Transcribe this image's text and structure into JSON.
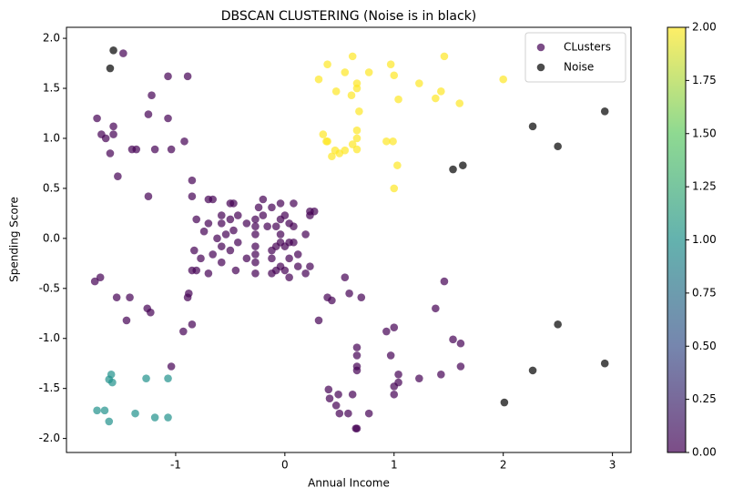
{
  "chart_data": {
    "type": "scatter",
    "title": "DBSCAN CLUSTERING (Noise is in black)",
    "x_label": "Annual Income",
    "y_label": "Spending Score",
    "xlim": [
      -2.0,
      3.17
    ],
    "ylim": [
      -2.14,
      2.11
    ],
    "xticks": [
      -1,
      0,
      1,
      2,
      3
    ],
    "yticks": [
      {
        "value": -2,
        "label": "-2.0"
      },
      -1.5,
      {
        "value": -1,
        "label": "-1.0"
      },
      -0.5,
      {
        "value": 0,
        "label": "0.0"
      },
      0.5,
      {
        "value": 1,
        "label": "1.0"
      },
      1.5,
      {
        "value": 2,
        "label": "2.0"
      }
    ],
    "alpha": 0.7,
    "legend": "upper right",
    "colormap": [
      "#440154",
      "#3b528b",
      "#21918c",
      "#5ec962",
      "#fde725"
    ],
    "clim": [
      0,
      2
    ],
    "cticks": [
      {
        "value": 0,
        "label": "0.00"
      },
      {
        "value": 0.25,
        "label": "0.25"
      },
      {
        "value": 0.5,
        "label": "0.50"
      },
      {
        "value": 0.75,
        "label": "0.75"
      },
      {
        "value": 1,
        "label": "1.00"
      },
      {
        "value": 1.25,
        "label": "1.25"
      },
      {
        "value": 1.5,
        "label": "1.50"
      },
      {
        "value": 1.75,
        "label": "1.75"
      },
      {
        "value": 2,
        "label": "2.00"
      }
    ],
    "series": [
      {
        "name": "CLusters",
        "x": [
          -1.72,
          -1.68,
          -1.64,
          -1.57,
          -1.57,
          -1.6,
          -1.53,
          -1.48,
          -1.4,
          -1.36,
          -1.25,
          -1.25,
          -1.22,
          -1.19,
          -1.07,
          -1.07,
          -1.04,
          -0.92,
          -0.89,
          -0.85,
          -0.85,
          -1.74,
          -1.69,
          -1.54,
          -1.45,
          -1.42,
          -1.26,
          -1.23,
          -0.93,
          -0.89,
          -0.88,
          -0.85,
          -1.04,
          0.31,
          0.39,
          0.4,
          0.41,
          0.43,
          0.47,
          0.49,
          0.5,
          0.55,
          0.58,
          0.59,
          0.62,
          0.65,
          0.66,
          0.66,
          0.66,
          0.66,
          0.66,
          0.7,
          0.77,
          0.93,
          0.97,
          1.0,
          1.0,
          1.0,
          1.04,
          1.04,
          1.23,
          1.38,
          1.43,
          1.46,
          1.54,
          1.61,
          1.61,
          -0.85,
          -0.81,
          -0.83,
          -0.81,
          -0.77,
          -0.74,
          -0.7,
          -0.7,
          -0.7,
          -0.66,
          -0.66,
          -0.62,
          -0.58,
          -0.58,
          -0.58,
          -0.58,
          -0.54,
          -0.5,
          -0.5,
          -0.5,
          -0.47,
          -0.47,
          -0.45,
          -0.43,
          -0.43,
          -0.35,
          -0.35,
          -0.27,
          -0.27,
          -0.27,
          -0.27,
          -0.27,
          -0.27,
          -0.27,
          -0.24,
          -0.2,
          -0.2,
          -0.16,
          -0.12,
          -0.12,
          -0.12,
          -0.12,
          -0.08,
          -0.08,
          -0.08,
          -0.04,
          -0.04,
          -0.04,
          -0.04,
          -0.04,
          0.0,
          0.0,
          0.0,
          0.04,
          0.04,
          0.04,
          0.04,
          0.08,
          0.08,
          0.08,
          0.12,
          0.12,
          0.19,
          0.19,
          0.23,
          0.23,
          0.23,
          0.27,
          -1.61,
          -1.59,
          -1.58,
          -1.27,
          -1.07,
          -1.72,
          -1.65,
          -1.61,
          -1.37,
          -1.19,
          -1.07,
          0.31,
          0.39,
          0.47,
          0.55,
          0.61,
          0.62,
          0.66,
          0.66,
          0.68,
          0.77,
          0.97,
          1.0,
          1.04,
          1.23,
          1.38,
          1.43,
          1.46,
          1.6,
          2.0,
          0.35,
          0.38,
          0.39,
          0.43,
          0.46,
          0.5,
          0.55,
          0.62,
          0.66,
          0.66,
          0.66,
          0.93,
          0.99,
          1.0,
          1.03
        ],
        "values": [
          1.2,
          1.04,
          1.0,
          1.12,
          1.04,
          0.85,
          0.62,
          1.85,
          0.89,
          0.89,
          1.24,
          0.42,
          1.43,
          0.89,
          1.62,
          1.2,
          0.89,
          0.97,
          1.62,
          0.58,
          0.42,
          -0.43,
          -0.39,
          -0.59,
          -0.82,
          -0.59,
          -0.7,
          -0.74,
          -0.93,
          -0.59,
          -0.55,
          -0.86,
          -1.28,
          -0.82,
          -0.59,
          -1.51,
          -1.6,
          -0.62,
          -1.67,
          -1.56,
          -1.75,
          -0.39,
          -1.75,
          -0.55,
          -1.56,
          -1.9,
          -1.9,
          -1.09,
          -1.17,
          -1.28,
          -1.32,
          -0.59,
          -1.75,
          -0.93,
          -1.17,
          -0.89,
          -1.48,
          -1.56,
          -1.36,
          -1.44,
          -1.4,
          -0.7,
          -1.36,
          -0.43,
          -1.01,
          -1.05,
          -1.28,
          -0.32,
          -0.32,
          -0.12,
          0.19,
          -0.2,
          0.07,
          0.39,
          0.15,
          -0.35,
          0.39,
          -0.16,
          0.0,
          0.23,
          0.15,
          -0.08,
          -0.24,
          0.04,
          0.35,
          0.19,
          -0.12,
          0.35,
          0.08,
          -0.32,
          0.23,
          -0.04,
          0.15,
          -0.2,
          0.19,
          0.12,
          0.04,
          -0.08,
          -0.16,
          -0.24,
          -0.35,
          0.31,
          0.39,
          0.23,
          0.12,
          0.31,
          -0.12,
          -0.2,
          -0.35,
          0.12,
          -0.08,
          -0.32,
          0.35,
          0.19,
          0.04,
          -0.04,
          -0.28,
          0.23,
          -0.08,
          -0.32,
          0.15,
          -0.04,
          -0.2,
          -0.39,
          0.35,
          0.12,
          -0.04,
          -0.16,
          -0.28,
          0.04,
          -0.35,
          -0.28,
          0.23,
          0.27,
          0.27,
          -1.41,
          -1.36,
          -1.44,
          -1.4,
          -1.4,
          -1.72,
          -1.72,
          -1.83,
          -1.75,
          -1.79,
          -1.79,
          1.59,
          1.74,
          1.47,
          1.66,
          1.43,
          1.82,
          1.5,
          1.55,
          1.27,
          1.66,
          1.74,
          1.63,
          1.39,
          1.55,
          1.4,
          1.47,
          1.82,
          1.35,
          1.59,
          1.04,
          0.97,
          0.97,
          0.82,
          0.88,
          0.85,
          0.88,
          0.94,
          0.89,
          1.0,
          1.08,
          0.97,
          0.97,
          0.5,
          0.73
        ],
        "c": [
          0,
          0,
          0,
          0,
          0,
          0,
          0,
          0,
          0,
          0,
          0,
          0,
          0,
          0,
          0,
          0,
          0,
          0,
          0,
          0,
          0,
          0,
          0,
          0,
          0,
          0,
          0,
          0,
          0,
          0,
          0,
          0,
          0,
          0,
          0,
          0,
          0,
          0,
          0,
          0,
          0,
          0,
          0,
          0,
          0,
          0,
          0,
          0,
          0,
          0,
          0,
          0,
          0,
          0,
          0,
          0,
          0,
          0,
          0,
          0,
          0,
          0,
          0,
          0,
          0,
          0,
          0,
          0,
          0,
          0,
          0,
          0,
          0,
          0,
          0,
          0,
          0,
          0,
          0,
          0,
          0,
          0,
          0,
          0,
          0,
          0,
          0,
          0,
          0,
          0,
          0,
          0,
          0,
          0,
          0,
          0,
          0,
          0,
          0,
          0,
          0,
          0,
          0,
          0,
          0,
          0,
          0,
          0,
          0,
          0,
          0,
          0,
          0,
          0,
          0,
          0,
          0,
          0,
          0,
          0,
          0,
          0,
          0,
          0,
          0,
          0,
          0,
          0,
          0,
          0,
          0,
          0,
          0,
          0,
          0,
          1,
          1,
          1,
          1,
          1,
          1,
          1,
          1,
          1,
          1,
          1,
          2,
          2,
          2,
          2,
          2,
          2,
          2,
          2,
          2,
          2,
          2,
          2,
          2,
          2,
          2,
          2,
          2,
          2,
          2,
          2,
          2,
          2,
          2,
          2,
          2,
          2,
          2,
          2,
          2,
          2,
          2,
          2,
          2,
          2
        ]
      },
      {
        "name": "Noise",
        "color": "#000000",
        "x": [
          -1.57,
          -1.6,
          2.27,
          2.5,
          2.93,
          1.63,
          1.54,
          2.5,
          2.27,
          2.01,
          2.93
        ],
        "values": [
          1.88,
          1.7,
          1.12,
          0.92,
          1.27,
          0.73,
          0.69,
          -0.86,
          -1.32,
          -1.64,
          -1.25
        ]
      }
    ]
  }
}
